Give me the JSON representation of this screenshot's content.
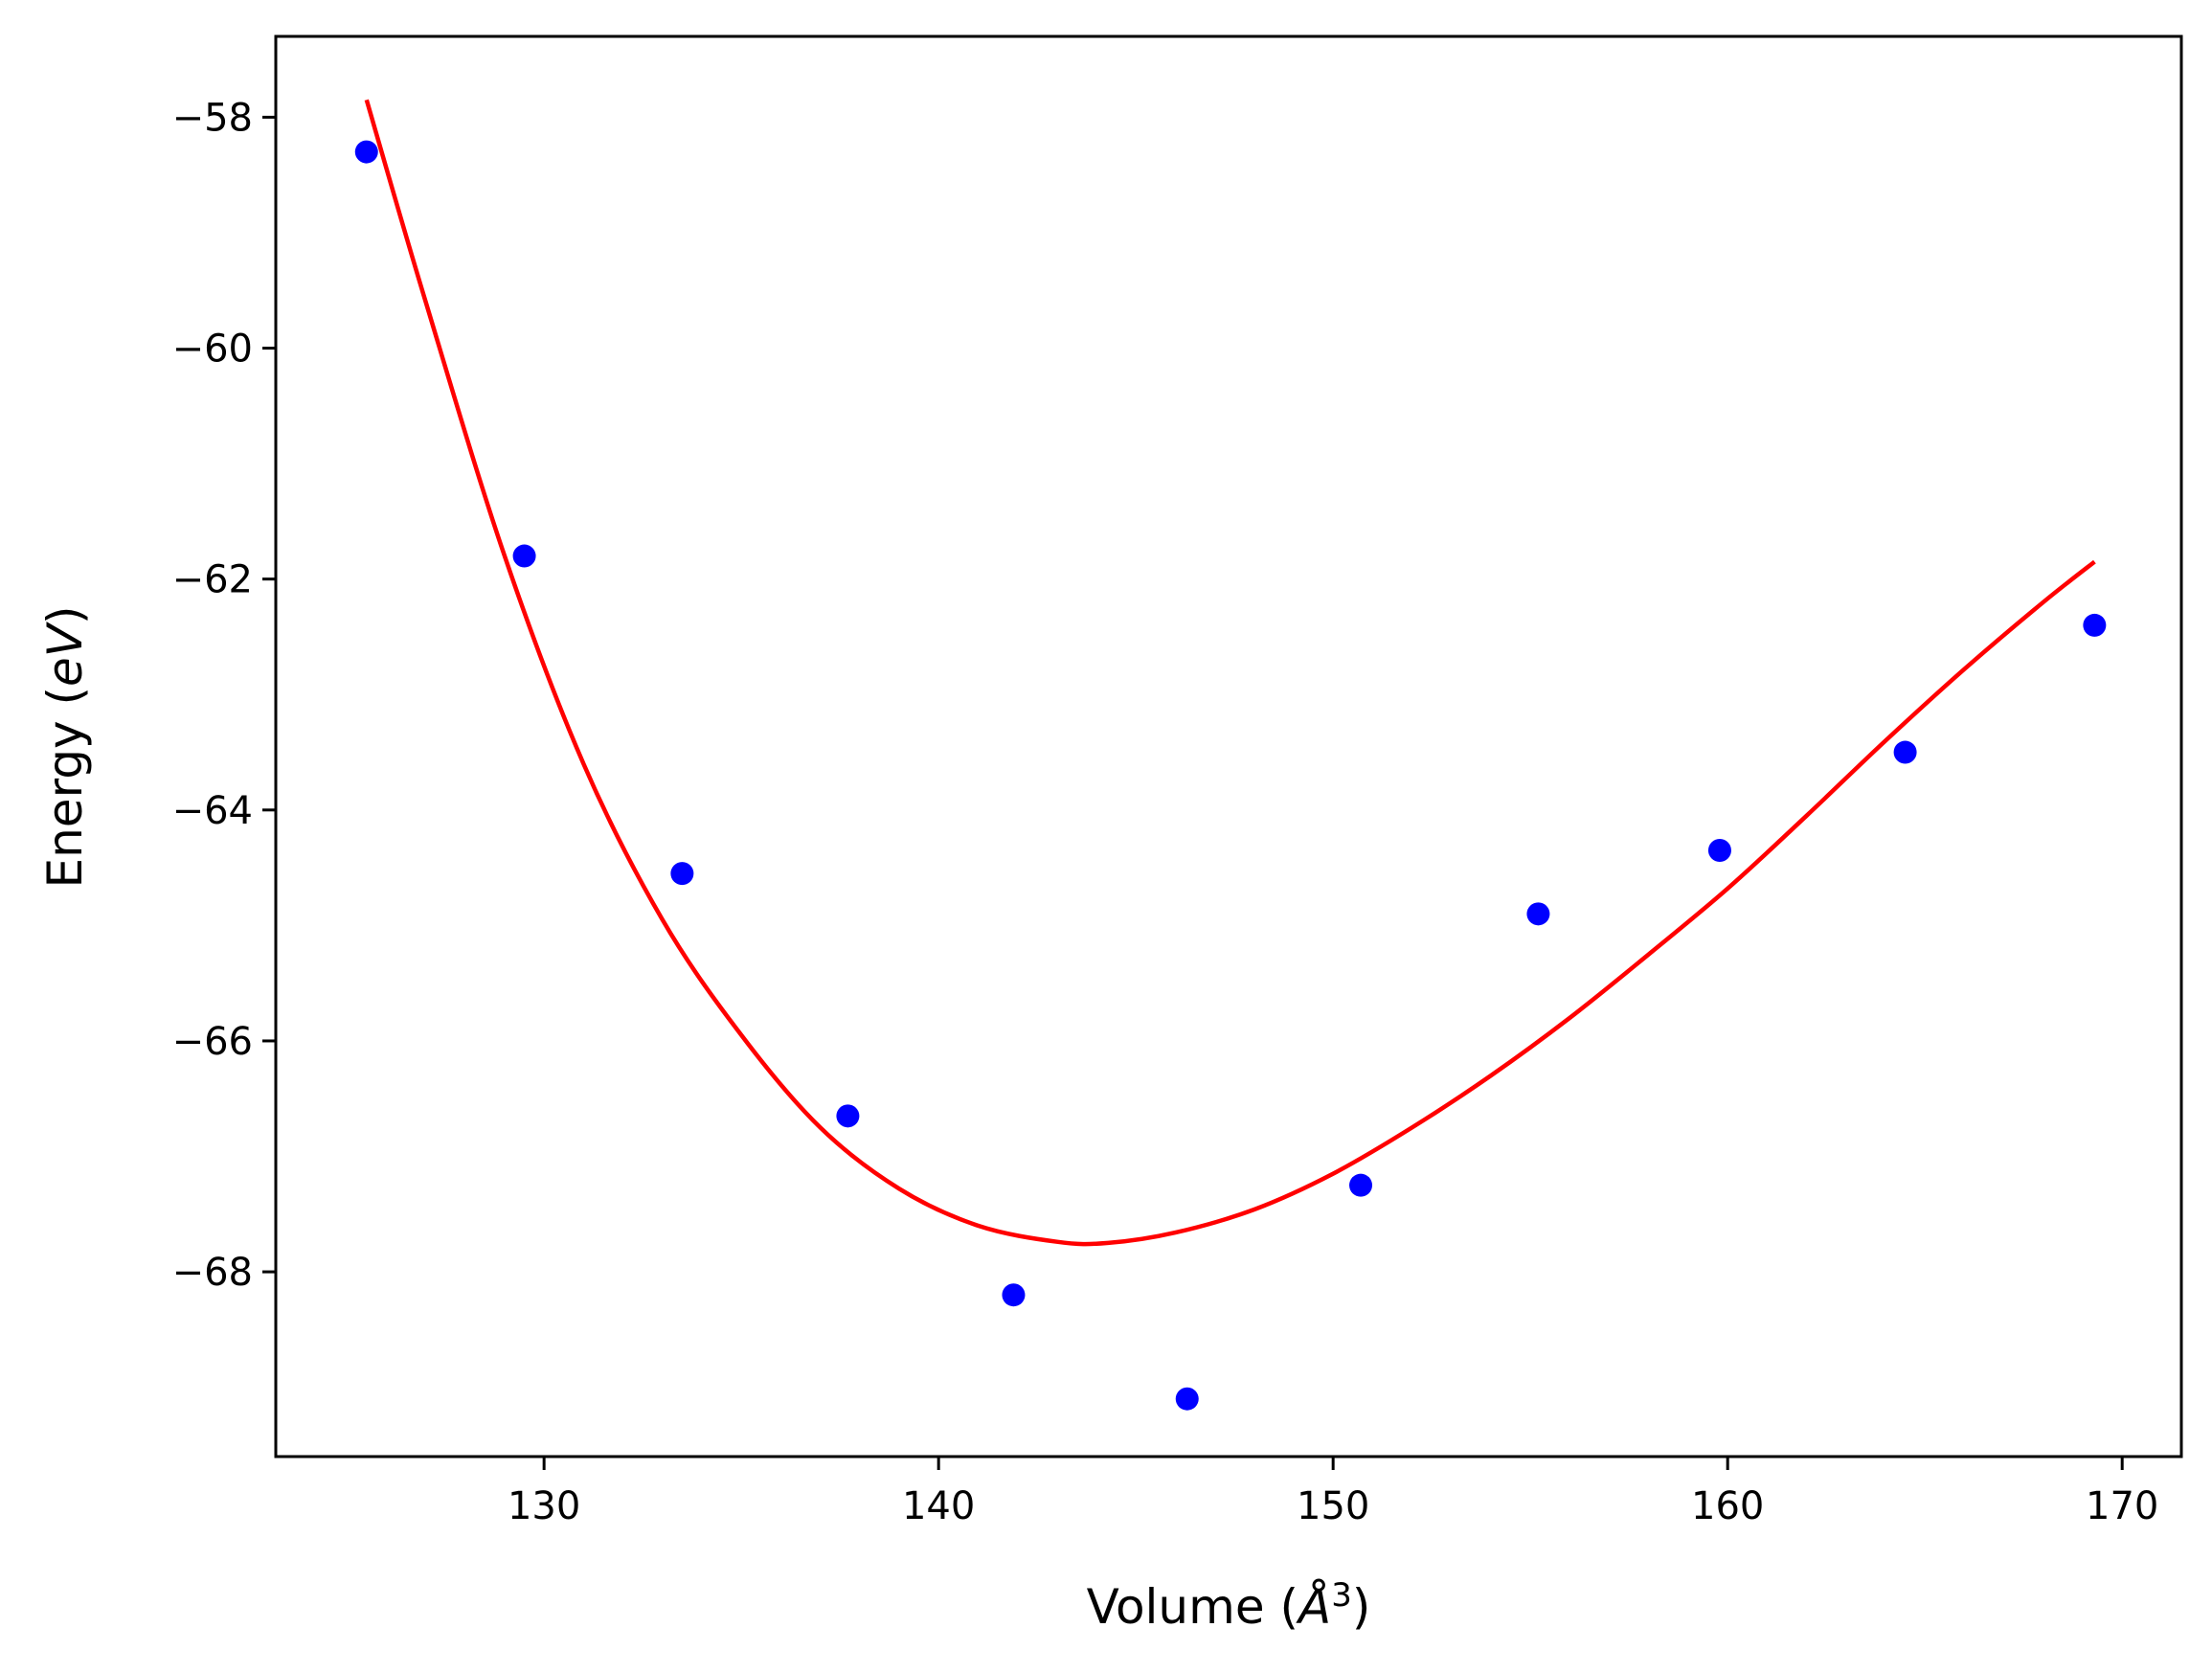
{
  "chart_data": {
    "type": "scatter",
    "title": "",
    "xlabel": "Volume ($\\AA^3$)",
    "ylabel": "Energy ($eV$)",
    "xlabel_parts": [
      "Volume (",
      "Å",
      "3",
      ")"
    ],
    "ylabel_parts": [
      "Energy (",
      "eV",
      ")"
    ],
    "xlim": [
      123.2,
      171.5
    ],
    "ylim": [
      -69.6,
      -57.3
    ],
    "xticks": [
      130,
      140,
      150,
      160,
      170
    ],
    "yticks": [
      -58,
      -60,
      -62,
      -64,
      -66,
      -68
    ],
    "xtick_labels": [
      "130",
      "140",
      "150",
      "160",
      "170"
    ],
    "ytick_labels": [
      "−58",
      "−60",
      "−62",
      "−64",
      "−66",
      "−68"
    ],
    "grid": false,
    "legend": "none",
    "series": [
      {
        "kind": "points",
        "color": "#0000ff",
        "x": [
          125.5,
          129.5,
          133.5,
          137.7,
          141.9,
          146.3,
          150.7,
          155.2,
          159.8,
          164.5,
          169.3
        ],
        "y": [
          -58.3,
          -61.8,
          -64.55,
          -66.65,
          -68.2,
          -69.1,
          -67.25,
          -64.9,
          -64.35,
          -63.5,
          -62.4
        ]
      },
      {
        "kind": "fit-line",
        "color": "#ff0000",
        "x": [
          125.5,
          127,
          129,
          131,
          133,
          135,
          137,
          139,
          141,
          143,
          144.3,
          146,
          148,
          150,
          152,
          154,
          156,
          158,
          160,
          162,
          164,
          166,
          168,
          169.3
        ],
        "y": [
          -57.85,
          -59.6,
          -61.8,
          -63.6,
          -64.95,
          -65.95,
          -66.75,
          -67.28,
          -67.6,
          -67.74,
          -67.75,
          -67.66,
          -67.46,
          -67.15,
          -66.75,
          -66.3,
          -65.8,
          -65.25,
          -64.68,
          -64.05,
          -63.4,
          -62.78,
          -62.2,
          -61.85
        ]
      }
    ]
  }
}
